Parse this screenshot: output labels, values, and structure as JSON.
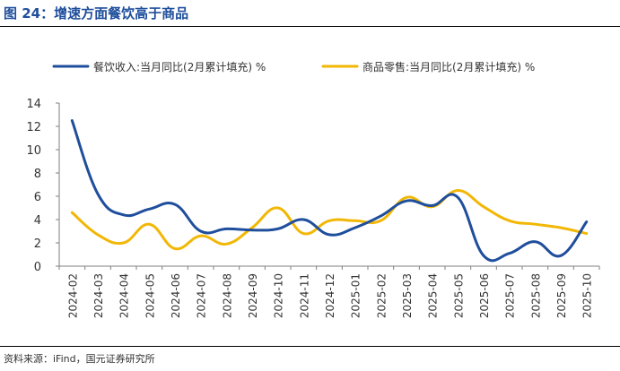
{
  "title": "图 24：增速方面餐饮高于商品",
  "source": "资料来源：iFind，国元证券研究所",
  "chart_data": {
    "type": "line",
    "categories": [
      "2024-02",
      "2024-03",
      "2024-04",
      "2024-05",
      "2024-06",
      "2024-07",
      "2024-08",
      "2024-09",
      "2024-10",
      "2024-11",
      "2024-12",
      "2025-01",
      "2025-02",
      "2025-03",
      "2025-04",
      "2025-05",
      "2025-06",
      "2025-07",
      "2025-08",
      "2025-09",
      "2025-10"
    ],
    "series": [
      {
        "name": "餐饮收入:当月同比(2月累计填充) %",
        "color": "#1f4e9c",
        "values": [
          12.5,
          6.2,
          4.4,
          4.9,
          5.3,
          3.0,
          3.2,
          3.1,
          3.2,
          4.0,
          2.7,
          3.3,
          4.3,
          5.6,
          5.2,
          5.9,
          0.9,
          1.1,
          2.1,
          0.9,
          3.8
        ]
      },
      {
        "name": "商品零售:当月同比(2月累计填充) %",
        "color": "#f2b705",
        "values": [
          4.6,
          2.7,
          2.0,
          3.6,
          1.5,
          2.6,
          1.9,
          3.3,
          5.0,
          2.8,
          3.9,
          3.9,
          3.9,
          5.9,
          5.1,
          6.5,
          5.1,
          3.9,
          3.6,
          3.3,
          2.8
        ]
      }
    ],
    "ylim": [
      0,
      14
    ],
    "yticks": [
      0,
      2,
      4,
      6,
      8,
      10,
      12,
      14
    ],
    "grid": false,
    "legend_position": "top"
  }
}
